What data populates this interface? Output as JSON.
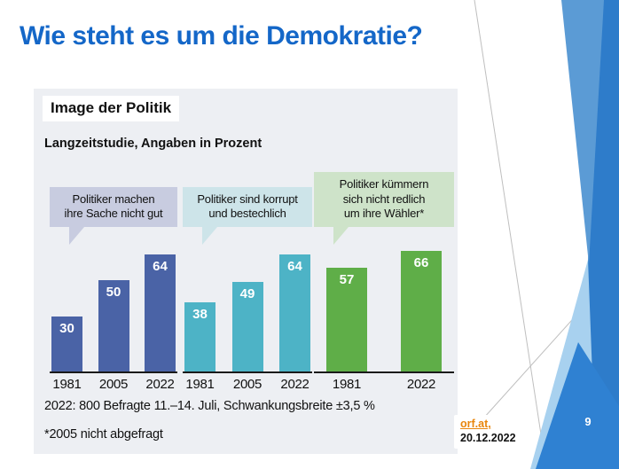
{
  "slide": {
    "title": "Wie steht es um die Demokratie?",
    "title_color": "#1467c8",
    "page_number": "9",
    "source": {
      "link_text": "orf.at,",
      "link_color": "#e8860d",
      "date": "20.12.2022"
    },
    "decoration_colors": {
      "facet_medium": "#5b9bd5",
      "facet_dark": "#2e7cca",
      "facet_light": "#a8d1ef",
      "facet_bottom_triangle": "#2f81d2",
      "thin_line_gray": "#bfbfbf"
    }
  },
  "infographic": {
    "panel_bg": "#edeff3",
    "title": "Image der Politik",
    "subtitle": "Langzeitstudie, Angaben in Prozent",
    "footnotes": [
      "2022: 800 Befragte 11.–14. Juli, Schwankungsbreite ±3,5 %",
      "*2005 nicht abgefragt"
    ]
  },
  "chart_data": {
    "type": "bar",
    "title": "Image der Politik",
    "subtitle": "Langzeitstudie, Angaben in Prozent",
    "unit": "Prozent",
    "ylim": [
      0,
      70
    ],
    "grid": false,
    "legend": "none",
    "value_label_position": "inside-top-white",
    "groups": [
      {
        "label": "Politiker machen ihre Sache nicht gut",
        "label_lines": "Politiker machen\nihre Sache nicht gut",
        "bubble_color": "#c8cce0",
        "bar_color": "#4a63a6",
        "categories": [
          "1981",
          "2005",
          "2022"
        ],
        "values": [
          30,
          50,
          64
        ]
      },
      {
        "label": "Politiker sind korrupt und bestechlich",
        "label_lines": "Politiker sind korrupt\nund bestechlich",
        "bubble_color": "#cde4e9",
        "bar_color": "#4db3c6",
        "categories": [
          "1981",
          "2005",
          "2022"
        ],
        "values": [
          38,
          49,
          64
        ]
      },
      {
        "label": "Politiker kümmern sich nicht redlich um ihre Wähler*",
        "label_lines": "Politiker kümmern\nsich nicht redlich\num ihre Wähler*",
        "bubble_color": "#cee3c9",
        "bar_color": "#5fae48",
        "categories": [
          "1981",
          "2022"
        ],
        "values": [
          57,
          66
        ]
      }
    ]
  }
}
